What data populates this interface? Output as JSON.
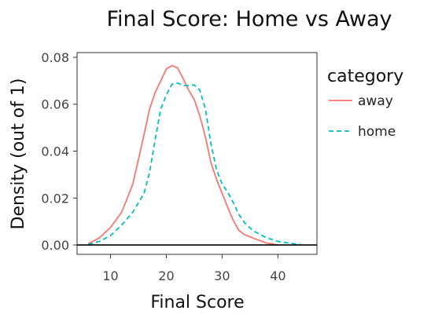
{
  "chart_data": {
    "type": "line",
    "title": "Final Score: Home vs Away",
    "xlabel": "Final Score",
    "ylabel": "Density (out of 1)",
    "xlim": [
      4,
      47
    ],
    "ylim": [
      -0.004,
      0.082
    ],
    "x_ticks": [
      10,
      20,
      30,
      40
    ],
    "x_tick_labels": [
      "10",
      "20",
      "30",
      "40"
    ],
    "y_ticks": [
      0,
      0.02,
      0.04,
      0.06,
      0.08
    ],
    "y_tick_labels": [
      "0.00",
      "0.02",
      "0.04",
      "0.06",
      "0.08"
    ],
    "grid": false,
    "legend": {
      "title": "category",
      "position": "right"
    },
    "series": [
      {
        "name": "away",
        "color": "#f8766d",
        "dash": "solid",
        "points": [
          [
            6,
            0.0005
          ],
          [
            8,
            0.003
          ],
          [
            10,
            0.0075
          ],
          [
            12,
            0.014
          ],
          [
            14,
            0.026
          ],
          [
            16,
            0.047
          ],
          [
            17,
            0.058
          ],
          [
            18,
            0.065
          ],
          [
            19,
            0.07
          ],
          [
            20,
            0.075
          ],
          [
            21,
            0.0765
          ],
          [
            22,
            0.0755
          ],
          [
            23,
            0.071
          ],
          [
            24,
            0.066
          ],
          [
            25,
            0.062
          ],
          [
            26,
            0.055
          ],
          [
            27,
            0.046
          ],
          [
            28,
            0.035
          ],
          [
            29,
            0.028
          ],
          [
            30,
            0.022
          ],
          [
            31,
            0.016
          ],
          [
            32,
            0.0105
          ],
          [
            33,
            0.0062
          ],
          [
            34,
            0.0044
          ],
          [
            36,
            0.0025
          ],
          [
            38,
            0.0008
          ],
          [
            40,
            0.0
          ]
        ]
      },
      {
        "name": "home",
        "color": "#00bfc4",
        "dash": "dashed",
        "points": [
          [
            6,
            0.0002
          ],
          [
            8,
            0.0015
          ],
          [
            10,
            0.004
          ],
          [
            12,
            0.0085
          ],
          [
            14,
            0.014
          ],
          [
            16,
            0.022
          ],
          [
            17,
            0.031
          ],
          [
            18,
            0.045
          ],
          [
            19,
            0.058
          ],
          [
            20,
            0.064
          ],
          [
            21,
            0.0685
          ],
          [
            22,
            0.069
          ],
          [
            23,
            0.068
          ],
          [
            24,
            0.068
          ],
          [
            25,
            0.0682
          ],
          [
            26,
            0.066
          ],
          [
            27,
            0.058
          ],
          [
            28,
            0.043
          ],
          [
            29,
            0.032
          ],
          [
            30,
            0.026
          ],
          [
            31,
            0.0225
          ],
          [
            32,
            0.018
          ],
          [
            33,
            0.013
          ],
          [
            34,
            0.0095
          ],
          [
            35,
            0.0072
          ],
          [
            36,
            0.0055
          ],
          [
            37,
            0.0042
          ],
          [
            38,
            0.003
          ],
          [
            40,
            0.0015
          ],
          [
            42,
            0.0008
          ],
          [
            44,
            0.0002
          ]
        ]
      }
    ]
  }
}
